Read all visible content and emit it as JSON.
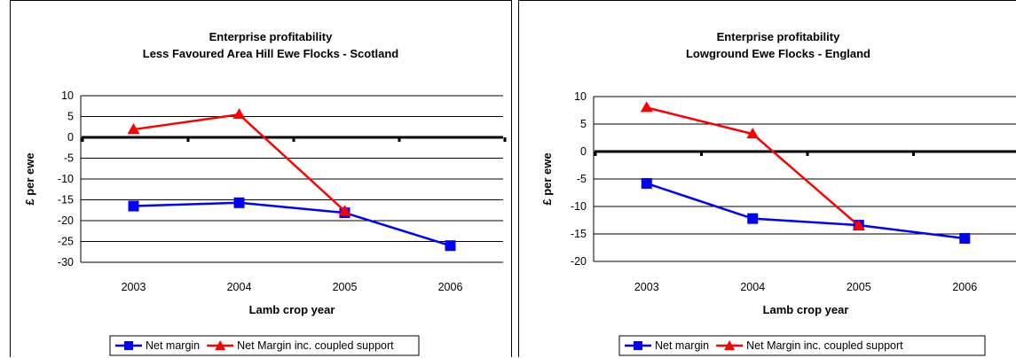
{
  "chart_data": [
    {
      "type": "line",
      "title": "Enterprise profitability",
      "subtitle": "Less Favoured Area Hill Ewe Flocks - Scotland",
      "xlabel": "Lamb crop year",
      "ylabel": "£ per ewe",
      "categories": [
        "2003",
        "2004",
        "2005",
        "2006"
      ],
      "ylim": [
        -30,
        10
      ],
      "yticks": [
        10,
        5,
        0,
        -5,
        -10,
        -15,
        -20,
        -25,
        -30
      ],
      "grid": true,
      "legend_position": "bottom",
      "series": [
        {
          "name": "Net margin",
          "values": [
            -16.5,
            -15.7,
            -18.1,
            -26.0
          ],
          "color": "#0000ff",
          "marker": "square"
        },
        {
          "name": "Net Margin inc. coupled support",
          "values": [
            1.9,
            5.5,
            -17.7,
            null
          ],
          "color": "#ff0000",
          "marker": "triangle"
        }
      ]
    },
    {
      "type": "line",
      "title": "Enterprise profitability",
      "subtitle": "Lowground Ewe Flocks - England",
      "xlabel": "Lamb crop year",
      "ylabel": "£ per ewe",
      "categories": [
        "2003",
        "2004",
        "2005",
        "2006"
      ],
      "ylim": [
        -20,
        10
      ],
      "yticks": [
        10,
        5,
        0,
        -5,
        -10,
        -15,
        -20
      ],
      "grid": true,
      "legend_position": "bottom",
      "series": [
        {
          "name": "Net margin",
          "values": [
            -5.8,
            -12.2,
            -13.4,
            -15.8
          ],
          "color": "#0000ff",
          "marker": "square"
        },
        {
          "name": "Net Margin inc. coupled support",
          "values": [
            8.0,
            3.2,
            -13.5,
            null
          ],
          "color": "#ff0000",
          "marker": "triangle"
        }
      ]
    }
  ]
}
